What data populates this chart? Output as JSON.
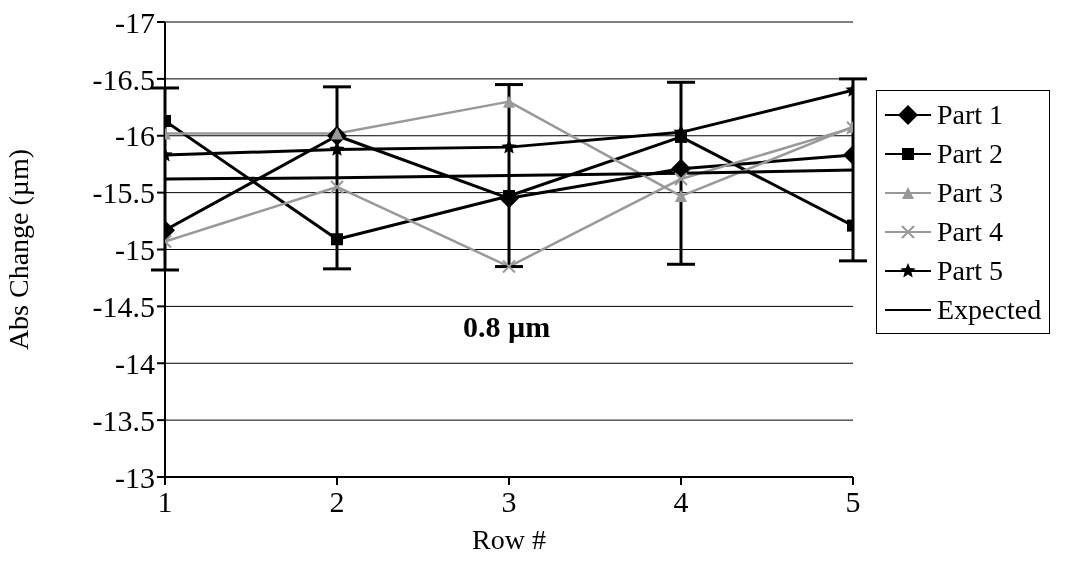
{
  "chart_data": {
    "type": "line",
    "xlabel": "Row #",
    "ylabel": "Abs Change (µm)",
    "x": [
      1,
      2,
      3,
      4,
      5
    ],
    "xlim": [
      1,
      5
    ],
    "xticks": [
      1,
      2,
      3,
      4,
      5
    ],
    "ylim": [
      -13,
      -17
    ],
    "yticks": [
      -17,
      -16.5,
      -16,
      -15.5,
      -15,
      -14.5,
      -14,
      -13.5,
      -13
    ],
    "grid": "y",
    "legend": "right",
    "annotations": [
      "0.8 µm"
    ],
    "series": [
      {
        "name": "Part 1",
        "color": "#000000",
        "marker": "diamond",
        "values": [
          -15.17,
          -16.0,
          -15.45,
          -15.71,
          -15.83
        ]
      },
      {
        "name": "Part 2",
        "color": "#000000",
        "marker": "square",
        "values": [
          -16.13,
          -15.09,
          -15.47,
          -15.99,
          -15.21
        ]
      },
      {
        "name": "Part 3",
        "color": "#999999",
        "marker": "triangle",
        "values": [
          -16.02,
          -16.02,
          -16.3,
          -15.47,
          -16.08
        ]
      },
      {
        "name": "Part 4",
        "color": "#999999",
        "marker": "cross",
        "values": [
          -15.07,
          -15.55,
          -14.85,
          -15.62,
          -16.07
        ]
      },
      {
        "name": "Part 5",
        "color": "#000000",
        "marker": "star",
        "values": [
          -15.83,
          -15.88,
          -15.9,
          -16.03,
          -16.4
        ]
      },
      {
        "name": "Expected",
        "color": "#000000",
        "marker": "none",
        "values": [
          -15.62,
          -15.63,
          -15.65,
          -15.67,
          -15.7
        ],
        "errors": [
          0.8,
          0.8,
          0.8,
          0.8,
          0.8
        ]
      }
    ]
  }
}
